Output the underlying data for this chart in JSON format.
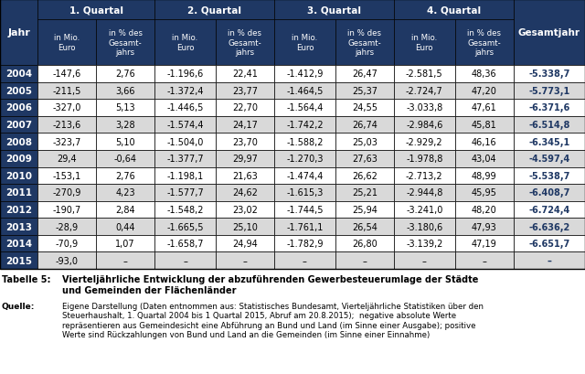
{
  "header_bg": "#1F3864",
  "header_fg": "#FFFFFF",
  "row_bg_odd": "#FFFFFF",
  "row_bg_even": "#D9D9D9",
  "year_col_bg": "#1F3864",
  "year_col_fg": "#FFFFFF",
  "bold_data_color": "#1F3864",
  "columns": [
    "Jahr",
    "in Mio.\nEuro",
    "in % des\nGesamt-\njahrs",
    "in Mio.\nEuro",
    "in % des\nGesamt-\njahrs",
    "in Mio.\nEuro",
    "in % des\nGesamt-\njahrs",
    "in Mio.\nEuro",
    "in % des\nGesamt-\njahrs",
    "in Mio.\nEuro"
  ],
  "quarter_headers": [
    "1. Quartal",
    "2. Quartal",
    "3. Quartal",
    "4. Quartal",
    "Gesamtjahr"
  ],
  "rows": [
    [
      "2004",
      "-147,6",
      "2,76",
      "-1.196,6",
      "22,41",
      "-1.412,9",
      "26,47",
      "-2.581,5",
      "48,36",
      "-5.338,7"
    ],
    [
      "2005",
      "-211,5",
      "3,66",
      "-1.372,4",
      "23,77",
      "-1.464,5",
      "25,37",
      "-2.724,7",
      "47,20",
      "-5.773,1"
    ],
    [
      "2006",
      "-327,0",
      "5,13",
      "-1.446,5",
      "22,70",
      "-1.564,4",
      "24,55",
      "-3.033,8",
      "47,61",
      "-6.371,6"
    ],
    [
      "2007",
      "-213,6",
      "3,28",
      "-1.574,4",
      "24,17",
      "-1.742,2",
      "26,74",
      "-2.984,6",
      "45,81",
      "-6.514,8"
    ],
    [
      "2008",
      "-323,7",
      "5,10",
      "-1.504,0",
      "23,70",
      "-1.588,2",
      "25,03",
      "-2.929,2",
      "46,16",
      "-6.345,1"
    ],
    [
      "2009",
      "29,4",
      "-0,64",
      "-1.377,7",
      "29,97",
      "-1.270,3",
      "27,63",
      "-1.978,8",
      "43,04",
      "-4.597,4"
    ],
    [
      "2010",
      "-153,1",
      "2,76",
      "-1.198,1",
      "21,63",
      "-1.474,4",
      "26,62",
      "-2.713,2",
      "48,99",
      "-5.538,7"
    ],
    [
      "2011",
      "-270,9",
      "4,23",
      "-1.577,7",
      "24,62",
      "-1.615,3",
      "25,21",
      "-2.944,8",
      "45,95",
      "-6.408,7"
    ],
    [
      "2012",
      "-190,7",
      "2,84",
      "-1.548,2",
      "23,02",
      "-1.744,5",
      "25,94",
      "-3.241,0",
      "48,20",
      "-6.724,4"
    ],
    [
      "2013",
      "-28,9",
      "0,44",
      "-1.665,5",
      "25,10",
      "-1.761,1",
      "26,54",
      "-3.180,6",
      "47,93",
      "-6.636,2"
    ],
    [
      "2014",
      "-70,9",
      "1,07",
      "-1.658,7",
      "24,94",
      "-1.782,9",
      "26,80",
      "-3.139,2",
      "47,19",
      "-6.651,7"
    ],
    [
      "2015",
      "-93,0",
      "–",
      "–",
      "–",
      "–",
      "–",
      "–",
      "–",
      "–"
    ]
  ],
  "table_label": "Tabelle 5:",
  "table_title": "Vierteljährliche Entwicklung der abzuführenden Gewerbesteuerumlage der Städte\nund Gemeinden der Flächenländer",
  "source_label": "Quelle:",
  "source_text": "Eigene Darstellung (Daten entnommen aus: Statistisches Bundesamt, Vierteljährliche Statistiken über den\nSteuerhaushalt, 1. Quartal 2004 bis 1 Quartal 2015, Abruf am 20.8.2015);  negative absolute Werte\nrepräsentieren aus Gemeindesicht eine Abführung an Bund und Land (im Sinne einer Ausgabe); positive\nWerte sind Rückzahlungen von Bund und Land an die Gemeinden (im Sinne einer Einnahme)"
}
